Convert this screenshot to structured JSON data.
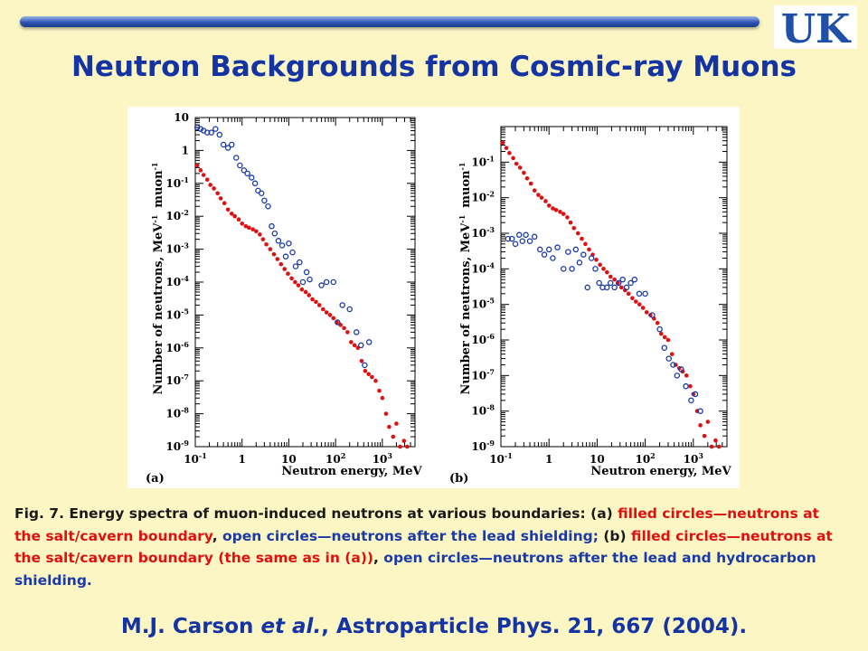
{
  "slide": {
    "title": "Neutron Backgrounds from Cosmic-ray Muons",
    "logo_text": "UK",
    "colors": {
      "title": "#1434a4",
      "background": "#fbf6c4",
      "filled": "#e01010",
      "open": "#1a3aa8"
    }
  },
  "caption": {
    "prefix": "Fig. 7. Energy spectra of muon-induced neutrons at various boundaries: (a) ",
    "a_filled": "filled circles—neutrons at the salt/cavern boundary",
    "sep1": ", ",
    "a_open": "open circles—neutrons after the lead shielding;",
    "mid": "  (b) ",
    "b_filled": "filled circles—neutrons at the salt/cavern boundary (the same as in (a))",
    "sep2": ", ",
    "b_open": "open circles—neutrons after the lead and hydrocarbon shielding."
  },
  "reference": {
    "author": "M.J. Carson ",
    "etal": "et al.",
    "rest": ",  Astroparticle Phys. 21, 667 (2004)."
  },
  "chart_data": [
    {
      "type": "scatter",
      "panel_label": "(a)",
      "xlabel": "Neutron energy, MeV",
      "ylabel": "Number of neutrons, MeV",
      "ylabel_exp": "-1",
      "ylabel_unit": "muon",
      "x_scale": "log",
      "y_scale": "log",
      "xlim": [
        0.1,
        5000
      ],
      "ylim": [
        1e-09,
        10
      ],
      "x_ticks": [
        {
          "v": 0.1,
          "b": "10",
          "e": "-1"
        },
        {
          "v": 1,
          "b": "1",
          "e": ""
        },
        {
          "v": 10,
          "b": "10",
          "e": ""
        },
        {
          "v": 100,
          "b": "10",
          "e": "2"
        },
        {
          "v": 1000,
          "b": "10",
          "e": "3"
        }
      ],
      "y_ticks": [
        {
          "v": 10,
          "b": "10",
          "e": ""
        },
        {
          "v": 1,
          "b": "1",
          "e": ""
        },
        {
          "v": 0.1,
          "b": "10",
          "e": "-1"
        },
        {
          "v": 0.01,
          "b": "10",
          "e": "-2"
        },
        {
          "v": 0.001,
          "b": "10",
          "e": "-3"
        },
        {
          "v": 0.0001,
          "b": "10",
          "e": "-4"
        },
        {
          "v": 1e-05,
          "b": "10",
          "e": "-5"
        },
        {
          "v": 1e-06,
          "b": "10",
          "e": "-6"
        },
        {
          "v": 1e-07,
          "b": "10",
          "e": "-7"
        },
        {
          "v": 1e-08,
          "b": "10",
          "e": "-8"
        },
        {
          "v": 1e-09,
          "b": "10",
          "e": "-9"
        }
      ],
      "series": [
        {
          "style": "filled",
          "color": "#e01010",
          "points": [
            [
              0.11,
              0.35
            ],
            [
              0.13,
              0.25
            ],
            [
              0.15,
              0.18
            ],
            [
              0.18,
              0.13
            ],
            [
              0.21,
              0.09
            ],
            [
              0.25,
              0.07
            ],
            [
              0.3,
              0.05
            ],
            [
              0.35,
              0.035
            ],
            [
              0.42,
              0.025
            ],
            [
              0.5,
              0.016
            ],
            [
              0.6,
              0.012
            ],
            [
              0.7,
              0.01
            ],
            [
              0.85,
              0.008
            ],
            [
              1.0,
              0.006
            ],
            [
              1.2,
              0.005
            ],
            [
              1.4,
              0.0045
            ],
            [
              1.7,
              0.004
            ],
            [
              2.0,
              0.0035
            ],
            [
              2.4,
              0.0028
            ],
            [
              2.8,
              0.002
            ],
            [
              3.3,
              0.0014
            ],
            [
              4.0,
              0.001
            ],
            [
              4.8,
              0.0007
            ],
            [
              5.7,
              0.0005
            ],
            [
              6.8,
              0.00035
            ],
            [
              8.1,
              0.00025
            ],
            [
              9.6,
              0.00018
            ],
            [
              11.5,
              0.00013
            ],
            [
              13.6,
              0.0001
            ],
            [
              16,
              8e-05
            ],
            [
              19,
              6e-05
            ],
            [
              23,
              5e-05
            ],
            [
              27,
              4e-05
            ],
            [
              32,
              3e-05
            ],
            [
              38,
              2.5e-05
            ],
            [
              45,
              2e-05
            ],
            [
              54,
              1.5e-05
            ],
            [
              64,
              1.2e-05
            ],
            [
              76,
              1e-05
            ],
            [
              90,
              8e-06
            ],
            [
              107,
              6e-06
            ],
            [
              128,
              5e-06
            ],
            [
              152,
              4e-06
            ],
            [
              180,
              3e-06
            ],
            [
              215,
              1.5e-06
            ],
            [
              255,
              1.2e-06
            ],
            [
              300,
              1e-06
            ],
            [
              360,
              4e-07
            ],
            [
              430,
              2e-07
            ],
            [
              510,
              1.6e-07
            ],
            [
              600,
              1.3e-07
            ],
            [
              720,
              1e-07
            ],
            [
              860,
              5e-08
            ],
            [
              1000,
              3e-08
            ],
            [
              1200,
              1e-08
            ],
            [
              1400,
              4e-09
            ],
            [
              1700,
              2e-09
            ],
            [
              2000,
              5e-09
            ],
            [
              2400,
              1e-09
            ],
            [
              2900,
              1.5e-09
            ],
            [
              3400,
              1e-09
            ]
          ]
        },
        {
          "style": "open",
          "color": "#1a3aa8",
          "points": [
            [
              0.11,
              5
            ],
            [
              0.13,
              4.5
            ],
            [
              0.15,
              4
            ],
            [
              0.18,
              3.5
            ],
            [
              0.22,
              3.5
            ],
            [
              0.27,
              4.5
            ],
            [
              0.33,
              3
            ],
            [
              0.4,
              1.5
            ],
            [
              0.5,
              1.2
            ],
            [
              0.6,
              1.5
            ],
            [
              0.75,
              0.6
            ],
            [
              0.9,
              0.35
            ],
            [
              1.1,
              0.25
            ],
            [
              1.3,
              0.2
            ],
            [
              1.6,
              0.15
            ],
            [
              1.9,
              0.1
            ],
            [
              2.2,
              0.06
            ],
            [
              2.6,
              0.05
            ],
            [
              3.0,
              0.03
            ],
            [
              3.6,
              0.02
            ],
            [
              4.3,
              0.005
            ],
            [
              5.0,
              0.003
            ],
            [
              6.0,
              0.0018
            ],
            [
              7.2,
              0.0013
            ],
            [
              8.6,
              0.0006
            ],
            [
              10,
              0.0015
            ],
            [
              12,
              0.0008
            ],
            [
              14,
              0.0003
            ],
            [
              17,
              0.0004
            ],
            [
              20,
              0.0001
            ],
            [
              24,
              0.0002
            ],
            [
              28,
              0.00012
            ],
            [
              50,
              8e-05
            ],
            [
              64,
              0.0001
            ],
            [
              90,
              0.0001
            ],
            [
              110,
              6e-06
            ],
            [
              140,
              2e-05
            ],
            [
              200,
              1.5e-05
            ],
            [
              280,
              3e-06
            ],
            [
              350,
              1.2e-06
            ],
            [
              420,
              3e-07
            ],
            [
              520,
              1.5e-06
            ]
          ]
        }
      ]
    },
    {
      "type": "scatter",
      "panel_label": "(b)",
      "xlabel": "Neutron energy, MeV",
      "ylabel": "Number of neutrons, MeV",
      "ylabel_exp": "-1",
      "ylabel_unit": "muon",
      "x_scale": "log",
      "y_scale": "log",
      "xlim": [
        0.1,
        5000
      ],
      "ylim": [
        1e-09,
        1
      ],
      "x_ticks": [
        {
          "v": 0.1,
          "b": "10",
          "e": "-1"
        },
        {
          "v": 1,
          "b": "1",
          "e": ""
        },
        {
          "v": 10,
          "b": "10",
          "e": ""
        },
        {
          "v": 100,
          "b": "10",
          "e": "2"
        },
        {
          "v": 1000,
          "b": "10",
          "e": "3"
        }
      ],
      "y_ticks": [
        {
          "v": 0.1,
          "b": "10",
          "e": "-1"
        },
        {
          "v": 0.01,
          "b": "10",
          "e": "-2"
        },
        {
          "v": 0.001,
          "b": "10",
          "e": "-3"
        },
        {
          "v": 0.0001,
          "b": "10",
          "e": "-4"
        },
        {
          "v": 1e-05,
          "b": "10",
          "e": "-5"
        },
        {
          "v": 1e-06,
          "b": "10",
          "e": "-6"
        },
        {
          "v": 1e-07,
          "b": "10",
          "e": "-7"
        },
        {
          "v": 1e-08,
          "b": "10",
          "e": "-8"
        },
        {
          "v": 1e-09,
          "b": "10",
          "e": "-9"
        }
      ],
      "series": [
        {
          "style": "filled",
          "color": "#e01010",
          "points": [
            [
              0.11,
              0.35
            ],
            [
              0.13,
              0.25
            ],
            [
              0.15,
              0.18
            ],
            [
              0.18,
              0.13
            ],
            [
              0.21,
              0.09
            ],
            [
              0.25,
              0.07
            ],
            [
              0.3,
              0.05
            ],
            [
              0.35,
              0.035
            ],
            [
              0.42,
              0.025
            ],
            [
              0.5,
              0.016
            ],
            [
              0.6,
              0.012
            ],
            [
              0.7,
              0.01
            ],
            [
              0.85,
              0.008
            ],
            [
              1.0,
              0.006
            ],
            [
              1.2,
              0.005
            ],
            [
              1.4,
              0.0045
            ],
            [
              1.7,
              0.004
            ],
            [
              2.0,
              0.0035
            ],
            [
              2.4,
              0.0028
            ],
            [
              2.8,
              0.002
            ],
            [
              3.3,
              0.0014
            ],
            [
              4.0,
              0.001
            ],
            [
              4.8,
              0.0007
            ],
            [
              5.7,
              0.0005
            ],
            [
              6.8,
              0.00035
            ],
            [
              8.1,
              0.00025
            ],
            [
              9.6,
              0.00018
            ],
            [
              11.5,
              0.00013
            ],
            [
              13.6,
              0.0001
            ],
            [
              16,
              8e-05
            ],
            [
              19,
              6e-05
            ],
            [
              23,
              5e-05
            ],
            [
              27,
              4e-05
            ],
            [
              32,
              3e-05
            ],
            [
              38,
              2.5e-05
            ],
            [
              45,
              2e-05
            ],
            [
              54,
              1.5e-05
            ],
            [
              64,
              1.2e-05
            ],
            [
              76,
              1e-05
            ],
            [
              90,
              8e-06
            ],
            [
              107,
              6e-06
            ],
            [
              128,
              5e-06
            ],
            [
              152,
              4e-06
            ],
            [
              180,
              3e-06
            ],
            [
              215,
              1.5e-06
            ],
            [
              255,
              1.2e-06
            ],
            [
              300,
              1e-06
            ],
            [
              360,
              4e-07
            ],
            [
              430,
              2e-07
            ],
            [
              510,
              1.6e-07
            ],
            [
              600,
              1.3e-07
            ],
            [
              720,
              1e-07
            ],
            [
              860,
              5e-08
            ],
            [
              1000,
              3e-08
            ],
            [
              1200,
              1e-08
            ],
            [
              1400,
              4e-09
            ],
            [
              1700,
              2e-09
            ],
            [
              2000,
              5e-09
            ],
            [
              2400,
              1e-09
            ],
            [
              2900,
              1.5e-09
            ],
            [
              3400,
              1e-09
            ]
          ]
        },
        {
          "style": "open",
          "color": "#1a3aa8",
          "points": [
            [
              0.14,
              0.0007
            ],
            [
              0.17,
              0.0007
            ],
            [
              0.2,
              0.0005
            ],
            [
              0.24,
              0.0009
            ],
            [
              0.28,
              0.0006
            ],
            [
              0.33,
              0.0009
            ],
            [
              0.4,
              0.0006
            ],
            [
              0.5,
              0.0008
            ],
            [
              0.65,
              0.00035
            ],
            [
              0.8,
              0.00025
            ],
            [
              1.0,
              0.00035
            ],
            [
              1.2,
              0.0002
            ],
            [
              1.5,
              0.0004
            ],
            [
              2.0,
              0.0001
            ],
            [
              2.5,
              0.0003
            ],
            [
              3.0,
              0.0001
            ],
            [
              3.6,
              0.00035
            ],
            [
              4.3,
              0.00015
            ],
            [
              5.2,
              0.00025
            ],
            [
              6.3,
              3e-05
            ],
            [
              7.6,
              0.0002
            ],
            [
              9.2,
              0.0001
            ],
            [
              11,
              4e-05
            ],
            [
              13,
              3e-05
            ],
            [
              16,
              3e-05
            ],
            [
              19,
              4e-05
            ],
            [
              23,
              3e-05
            ],
            [
              28,
              4e-05
            ],
            [
              34,
              5e-05
            ],
            [
              41,
              3e-05
            ],
            [
              50,
              4e-05
            ],
            [
              60,
              5e-05
            ],
            [
              75,
              2e-05
            ],
            [
              100,
              2e-05
            ],
            [
              140,
              5e-06
            ],
            [
              200,
              2e-06
            ],
            [
              250,
              6e-07
            ],
            [
              310,
              3e-07
            ],
            [
              380,
              2e-07
            ],
            [
              460,
              1e-07
            ],
            [
              560,
              1.5e-07
            ],
            [
              700,
              5e-08
            ],
            [
              900,
              2e-08
            ],
            [
              1100,
              3e-08
            ],
            [
              1400,
              1e-08
            ]
          ]
        }
      ]
    }
  ]
}
